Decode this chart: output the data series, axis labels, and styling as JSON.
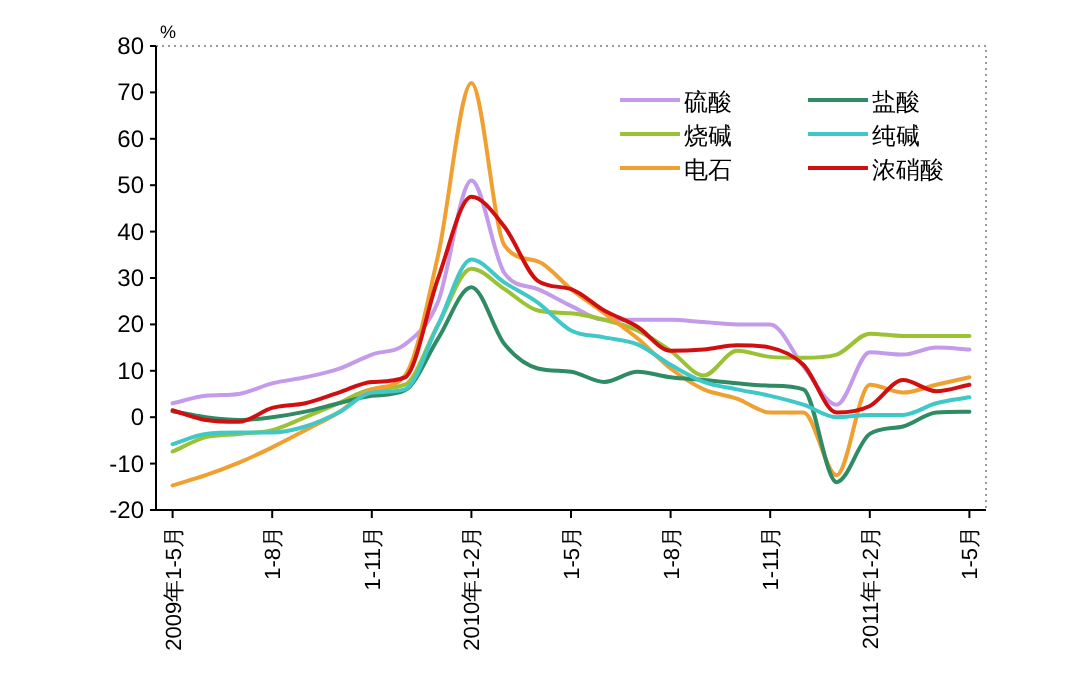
{
  "chart_data": {
    "type": "line",
    "ylabel": "%",
    "categories": [
      "2009年1-5月",
      null,
      null,
      "1-8月",
      null,
      null,
      "1-11月",
      null,
      null,
      "2010年1-2月",
      null,
      null,
      "1-5月",
      null,
      null,
      "1-8月",
      null,
      null,
      "1-11月",
      null,
      null,
      "2011年1-2月",
      null,
      null,
      "1-5月"
    ],
    "series": [
      {
        "name": "硫酸",
        "color": "#c39bea",
        "values": [
          3,
          4.6,
          5,
          7.3,
          8.6,
          10.4,
          13.5,
          15.7,
          25,
          51,
          31,
          27.6,
          24,
          21,
          21,
          21,
          20.5,
          20,
          20,
          11,
          2.7,
          14,
          13.5,
          15,
          14.6
        ]
      },
      {
        "name": "烧碱",
        "color": "#9bc234",
        "values": [
          -7.4,
          -4.3,
          -3.6,
          -2.8,
          0,
          3,
          6,
          7,
          20,
          32,
          27.6,
          23,
          22.4,
          21,
          18.7,
          14.3,
          9,
          14.3,
          13,
          12.8,
          13.5,
          18,
          17.5,
          17.5,
          17.5
        ]
      },
      {
        "name": "电石",
        "color": "#f0a030",
        "values": [
          -14.7,
          -12.5,
          -9.8,
          -6.5,
          -2.8,
          1,
          6,
          9,
          35,
          72,
          37,
          33.6,
          27.6,
          22.4,
          17,
          10.5,
          6,
          4,
          1,
          1,
          -12.5,
          7,
          5.3,
          7,
          8.6
        ]
      },
      {
        "name": "盐酸",
        "color": "#2e8b64",
        "values": [
          1.3,
          0,
          -0.6,
          0,
          1.2,
          3,
          4.6,
          5.8,
          17,
          28,
          15.7,
          10.5,
          9.8,
          7.6,
          9.8,
          8.6,
          8,
          7.3,
          6.8,
          6,
          -14,
          -3.6,
          -2,
          1,
          1.2
        ]
      },
      {
        "name": "纯碱",
        "color": "#40c8c8",
        "values": [
          -5.8,
          -3.6,
          -3.3,
          -3.3,
          -2,
          1,
          5.3,
          6,
          20,
          34,
          29,
          24.7,
          18.7,
          17.2,
          15.7,
          11.3,
          7.6,
          6,
          4.6,
          2.7,
          0,
          0.5,
          0.5,
          3,
          4.3
        ]
      },
      {
        "name": "浓硝酸",
        "color": "#d01010",
        "values": [
          1.5,
          -0.6,
          -1,
          2,
          3,
          5.3,
          7.6,
          8.6,
          30,
          47.5,
          41,
          29.4,
          27.6,
          23,
          19.5,
          14.3,
          14.6,
          15.5,
          15,
          11.3,
          1,
          2.4,
          8,
          5.6,
          7
        ]
      }
    ],
    "ylim": [
      -20,
      80
    ],
    "yticks": [
      -20,
      -10,
      0,
      10,
      20,
      30,
      40,
      50,
      60,
      70,
      80
    ],
    "legend": "top right"
  }
}
